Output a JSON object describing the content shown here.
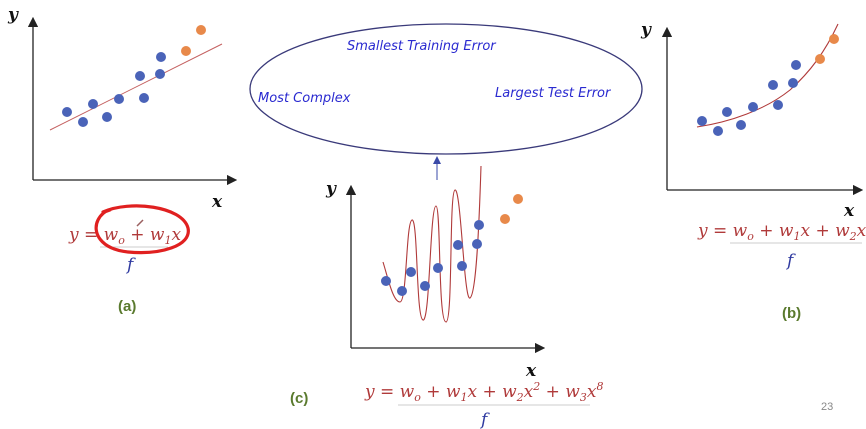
{
  "bubble": {
    "top": "Smallest Training Error",
    "left": "Most Complex",
    "right": "Largest Test Error"
  },
  "panel_a": {
    "y_label": "y",
    "x_label": "x",
    "equation": "y = w_o + w_1 x",
    "equation_sub": "f",
    "label": "(a)"
  },
  "panel_b": {
    "y_label": "y",
    "x_label": "x",
    "equation": "y = w_o + w_1 x + w_2 x^2",
    "equation_sub": "f",
    "label": "(b)"
  },
  "panel_c": {
    "y_label": "y",
    "x_label": "x",
    "equation": "y = w_o + w_1 x + w_2 x^2 + w_3 x^8",
    "equation_sub": "f",
    "label": "(c)"
  },
  "page_number": "23",
  "colors": {
    "train_point": "#4a63b8",
    "test_point": "#e8894a",
    "fit_line": "#b03a3a",
    "annotation": "#e02020"
  }
}
